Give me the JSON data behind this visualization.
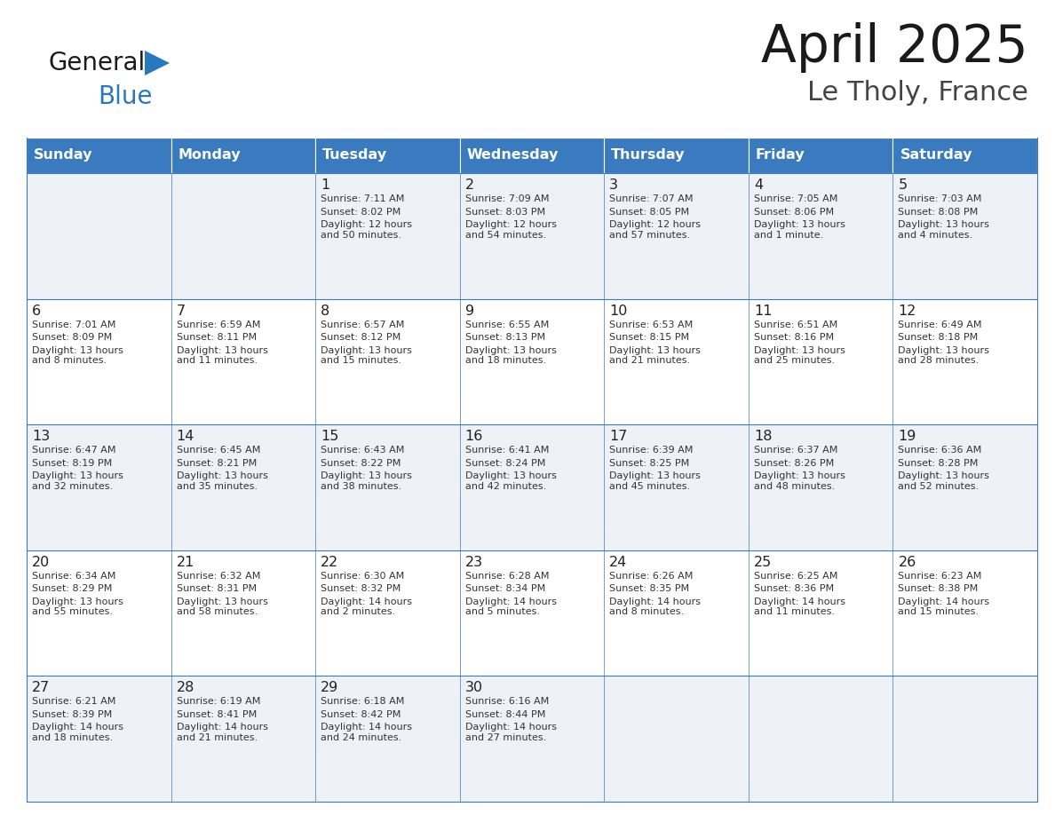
{
  "title": "April 2025",
  "subtitle": "Le Tholy, France",
  "header_color": "#3a7abf",
  "header_text_color": "#ffffff",
  "cell_bg_even": "#eef2f7",
  "cell_bg_odd": "#ffffff",
  "day_headers": [
    "Sunday",
    "Monday",
    "Tuesday",
    "Wednesday",
    "Thursday",
    "Friday",
    "Saturday"
  ],
  "title_color": "#1a1a1a",
  "subtitle_color": "#444444",
  "day_num_color": "#222222",
  "cell_text_color": "#333333",
  "grid_color": "#3a7abf",
  "logo_black": "#1a1a1a",
  "logo_blue": "#2878c0",
  "logo_triangle": "#2878c0",
  "weeks": [
    [
      {
        "day": "",
        "sunrise": "",
        "sunset": "",
        "daylight": ""
      },
      {
        "day": "",
        "sunrise": "",
        "sunset": "",
        "daylight": ""
      },
      {
        "day": "1",
        "sunrise": "7:11 AM",
        "sunset": "8:02 PM",
        "daylight": "12 hours\nand 50 minutes."
      },
      {
        "day": "2",
        "sunrise": "7:09 AM",
        "sunset": "8:03 PM",
        "daylight": "12 hours\nand 54 minutes."
      },
      {
        "day": "3",
        "sunrise": "7:07 AM",
        "sunset": "8:05 PM",
        "daylight": "12 hours\nand 57 minutes."
      },
      {
        "day": "4",
        "sunrise": "7:05 AM",
        "sunset": "8:06 PM",
        "daylight": "13 hours\nand 1 minute."
      },
      {
        "day": "5",
        "sunrise": "7:03 AM",
        "sunset": "8:08 PM",
        "daylight": "13 hours\nand 4 minutes."
      }
    ],
    [
      {
        "day": "6",
        "sunrise": "7:01 AM",
        "sunset": "8:09 PM",
        "daylight": "13 hours\nand 8 minutes."
      },
      {
        "day": "7",
        "sunrise": "6:59 AM",
        "sunset": "8:11 PM",
        "daylight": "13 hours\nand 11 minutes."
      },
      {
        "day": "8",
        "sunrise": "6:57 AM",
        "sunset": "8:12 PM",
        "daylight": "13 hours\nand 15 minutes."
      },
      {
        "day": "9",
        "sunrise": "6:55 AM",
        "sunset": "8:13 PM",
        "daylight": "13 hours\nand 18 minutes."
      },
      {
        "day": "10",
        "sunrise": "6:53 AM",
        "sunset": "8:15 PM",
        "daylight": "13 hours\nand 21 minutes."
      },
      {
        "day": "11",
        "sunrise": "6:51 AM",
        "sunset": "8:16 PM",
        "daylight": "13 hours\nand 25 minutes."
      },
      {
        "day": "12",
        "sunrise": "6:49 AM",
        "sunset": "8:18 PM",
        "daylight": "13 hours\nand 28 minutes."
      }
    ],
    [
      {
        "day": "13",
        "sunrise": "6:47 AM",
        "sunset": "8:19 PM",
        "daylight": "13 hours\nand 32 minutes."
      },
      {
        "day": "14",
        "sunrise": "6:45 AM",
        "sunset": "8:21 PM",
        "daylight": "13 hours\nand 35 minutes."
      },
      {
        "day": "15",
        "sunrise": "6:43 AM",
        "sunset": "8:22 PM",
        "daylight": "13 hours\nand 38 minutes."
      },
      {
        "day": "16",
        "sunrise": "6:41 AM",
        "sunset": "8:24 PM",
        "daylight": "13 hours\nand 42 minutes."
      },
      {
        "day": "17",
        "sunrise": "6:39 AM",
        "sunset": "8:25 PM",
        "daylight": "13 hours\nand 45 minutes."
      },
      {
        "day": "18",
        "sunrise": "6:37 AM",
        "sunset": "8:26 PM",
        "daylight": "13 hours\nand 48 minutes."
      },
      {
        "day": "19",
        "sunrise": "6:36 AM",
        "sunset": "8:28 PM",
        "daylight": "13 hours\nand 52 minutes."
      }
    ],
    [
      {
        "day": "20",
        "sunrise": "6:34 AM",
        "sunset": "8:29 PM",
        "daylight": "13 hours\nand 55 minutes."
      },
      {
        "day": "21",
        "sunrise": "6:32 AM",
        "sunset": "8:31 PM",
        "daylight": "13 hours\nand 58 minutes."
      },
      {
        "day": "22",
        "sunrise": "6:30 AM",
        "sunset": "8:32 PM",
        "daylight": "14 hours\nand 2 minutes."
      },
      {
        "day": "23",
        "sunrise": "6:28 AM",
        "sunset": "8:34 PM",
        "daylight": "14 hours\nand 5 minutes."
      },
      {
        "day": "24",
        "sunrise": "6:26 AM",
        "sunset": "8:35 PM",
        "daylight": "14 hours\nand 8 minutes."
      },
      {
        "day": "25",
        "sunrise": "6:25 AM",
        "sunset": "8:36 PM",
        "daylight": "14 hours\nand 11 minutes."
      },
      {
        "day": "26",
        "sunrise": "6:23 AM",
        "sunset": "8:38 PM",
        "daylight": "14 hours\nand 15 minutes."
      }
    ],
    [
      {
        "day": "27",
        "sunrise": "6:21 AM",
        "sunset": "8:39 PM",
        "daylight": "14 hours\nand 18 minutes."
      },
      {
        "day": "28",
        "sunrise": "6:19 AM",
        "sunset": "8:41 PM",
        "daylight": "14 hours\nand 21 minutes."
      },
      {
        "day": "29",
        "sunrise": "6:18 AM",
        "sunset": "8:42 PM",
        "daylight": "14 hours\nand 24 minutes."
      },
      {
        "day": "30",
        "sunrise": "6:16 AM",
        "sunset": "8:44 PM",
        "daylight": "14 hours\nand 27 minutes."
      },
      {
        "day": "",
        "sunrise": "",
        "sunset": "",
        "daylight": ""
      },
      {
        "day": "",
        "sunrise": "",
        "sunset": "",
        "daylight": ""
      },
      {
        "day": "",
        "sunrise": "",
        "sunset": "",
        "daylight": ""
      }
    ]
  ]
}
